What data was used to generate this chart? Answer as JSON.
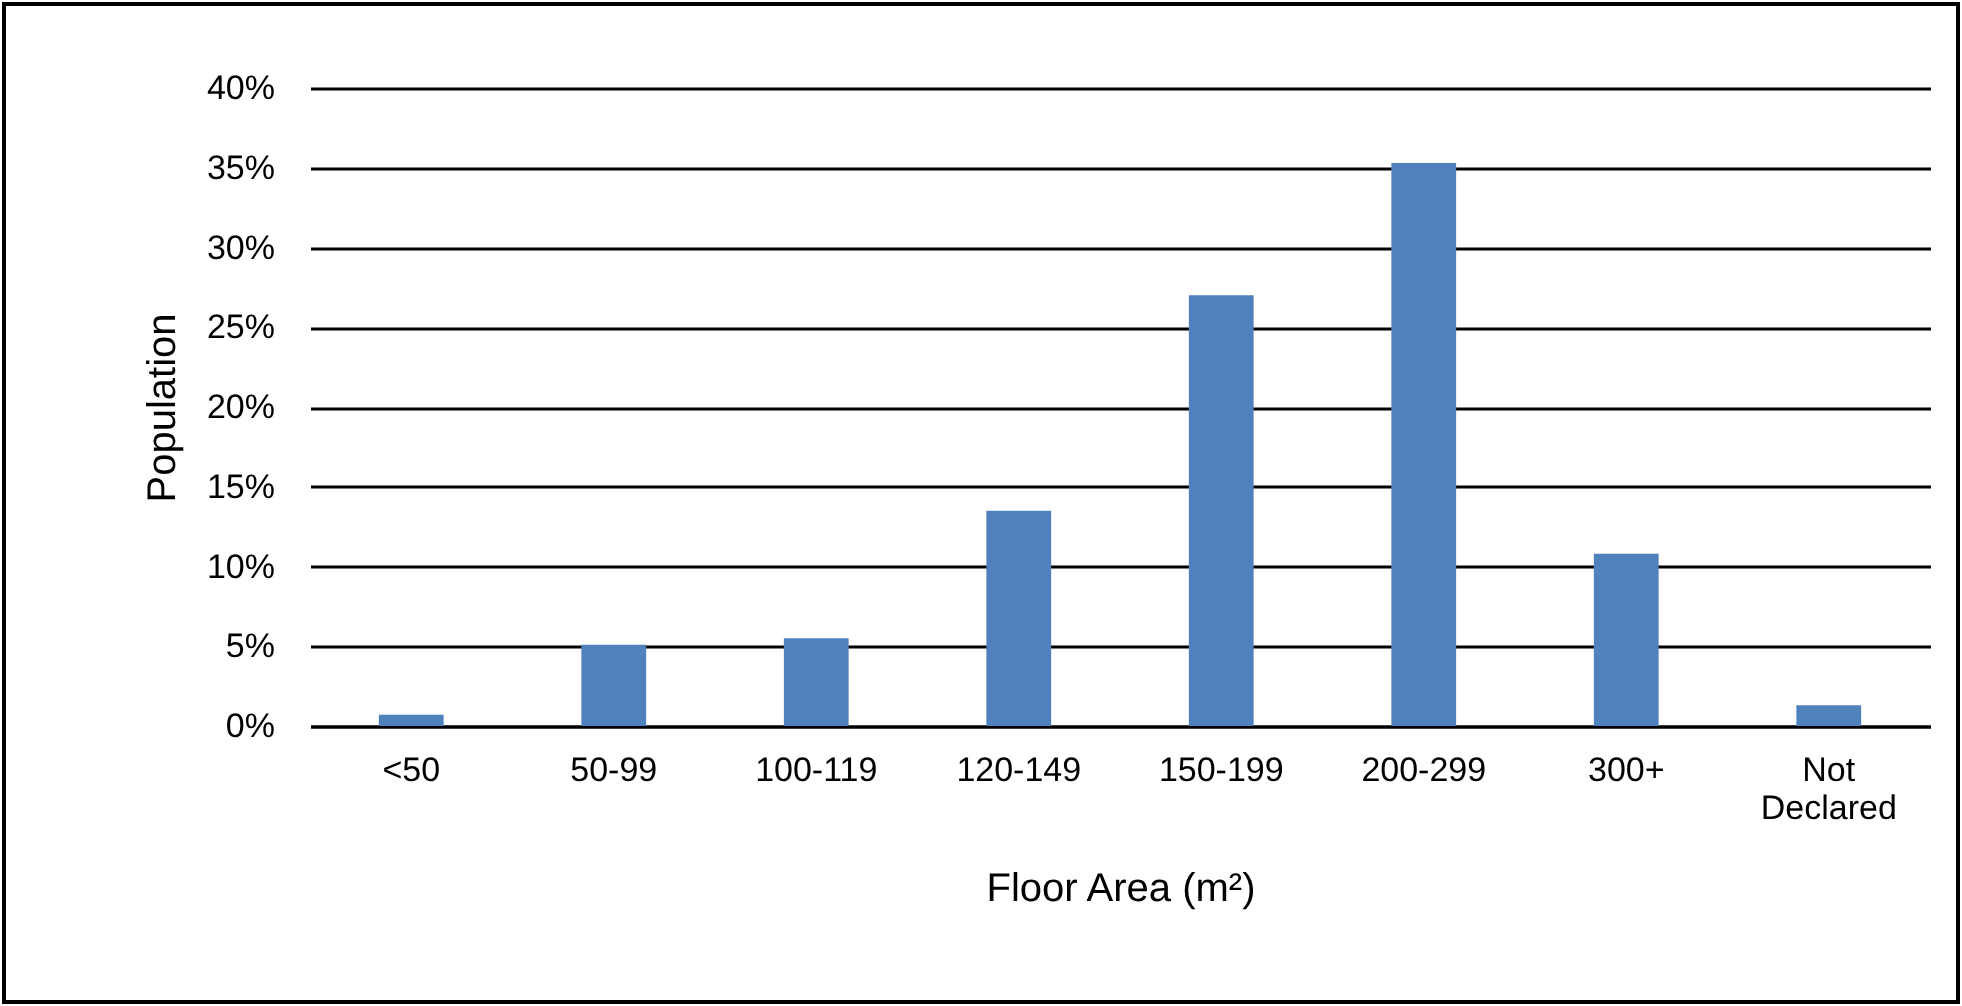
{
  "chart_data": {
    "type": "bar",
    "xlabel": "Floor Area (m²)",
    "ylabel": "Population",
    "categories": [
      "<50",
      "50-99",
      "100-119",
      "120-149",
      "150-199",
      "200-299",
      "300+",
      "Not Declared"
    ],
    "values": [
      0.7,
      5.1,
      5.5,
      13.5,
      27.0,
      35.3,
      10.8,
      1.3
    ],
    "color": "#4f81bd",
    "ylim": [
      0,
      40
    ],
    "yticks": [
      {
        "value": 0,
        "label": "0%"
      },
      {
        "value": 5,
        "label": "5%"
      },
      {
        "value": 10,
        "label": "10%"
      },
      {
        "value": 15,
        "label": "15%"
      },
      {
        "value": 20,
        "label": "20%"
      },
      {
        "value": 25,
        "label": "25%"
      },
      {
        "value": 30,
        "label": "30%"
      },
      {
        "value": 35,
        "label": "35%"
      },
      {
        "value": 40,
        "label": "40%"
      }
    ],
    "grid": "y"
  }
}
